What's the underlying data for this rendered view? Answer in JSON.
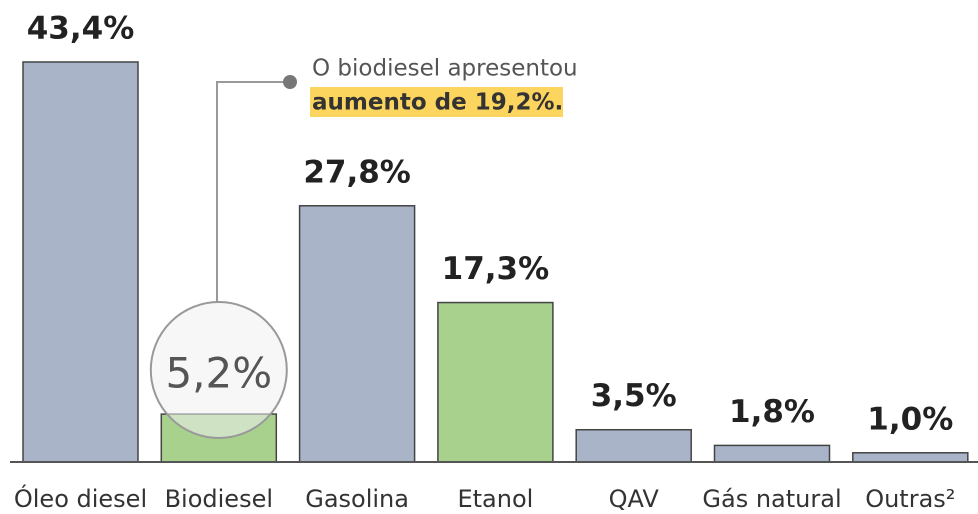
{
  "chart_data": {
    "type": "bar",
    "categories": [
      "Óleo diesel",
      "Biodiesel",
      "Gasolina",
      "Etanol",
      "QAV",
      "Gás natural",
      "Outras²"
    ],
    "values": [
      43.4,
      5.2,
      27.8,
      17.3,
      3.5,
      1.8,
      1.0
    ],
    "value_labels": [
      "43,4%",
      "5,2%",
      "27,8%",
      "17,3%",
      "3,5%",
      "1,8%",
      "1,0%"
    ],
    "colors": [
      "#a9b4c8",
      "#a9d18e",
      "#a9b4c8",
      "#a9d18e",
      "#a9b4c8",
      "#a9b4c8",
      "#a9b4c8"
    ],
    "annotation": {
      "line1": "O biodiesel apresentou",
      "line2": "aumento de 19,2%."
    }
  }
}
